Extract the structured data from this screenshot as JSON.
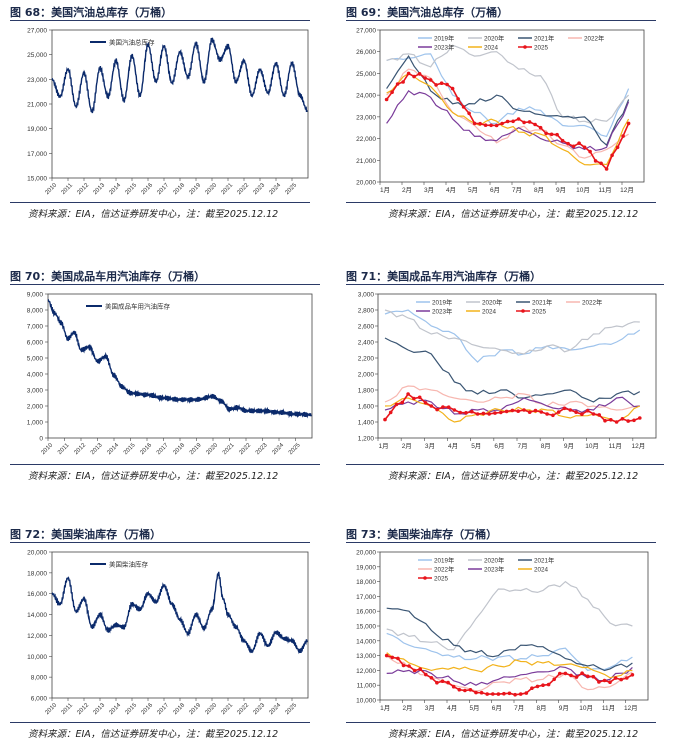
{
  "panels": [
    {
      "title": "图 68：美国汽油总库存（万桶）",
      "source": "资料来源：EIA，信达证券研发中心，注：截至2025.12.12"
    },
    {
      "title": "图 69：美国汽油总库存（万桶）",
      "source": "资料来源：EIA，信达证券研发中心，注：截至2025.12.12"
    },
    {
      "title": "图 70：美国成品车用汽油库存（万桶）",
      "source": "资料来源：EIA，信达证券研发中心，注：截至2025.12.12"
    },
    {
      "title": "图 71：美国成品车用汽油库存（万桶）",
      "source": "资料来源：EIA，信达证券研发中心，注：截至2025.12.12"
    },
    {
      "title": "图 72：美国柴油库存（万桶）",
      "source": "资料来源：EIA，信达证券研发中心，注：截至2025.12.12"
    },
    {
      "title": "图 73：美国柴油库存（万桶）",
      "source": "资料来源：EIA，信达证券研发中心，注：截至2025.12.12"
    }
  ],
  "colors": {
    "navy": "#0b2a6b",
    "y2019": "#9ec3ec",
    "y2020": "#c0c4cc",
    "y2021": "#3a5573",
    "y2022": "#f7b7b0",
    "y2023": "#7a3b9a",
    "y2024": "#f2b21b",
    "y2025": "#e8141b"
  },
  "chart_data": [
    {
      "type": "line",
      "series": [
        {
          "name": "美国汽油总库存",
          "x": [
            2010.0,
            2010.5,
            2011.0,
            2011.5,
            2012.0,
            2012.5,
            2013.0,
            2013.5,
            2014.0,
            2014.5,
            2015.0,
            2015.5,
            2016.0,
            2016.5,
            2017.0,
            2017.5,
            2018.0,
            2018.5,
            2019.0,
            2019.5,
            2020.0,
            2020.5,
            2021.0,
            2021.5,
            2022.0,
            2022.5,
            2023.0,
            2023.5,
            2024.0,
            2024.5,
            2025.0,
            2025.5,
            2025.95
          ],
          "values": [
            23000,
            21600,
            23800,
            20800,
            23500,
            20400,
            23900,
            21600,
            24500,
            21300,
            24900,
            21700,
            25800,
            22800,
            25700,
            22700,
            25200,
            23200,
            25900,
            22800,
            26200,
            24600,
            25700,
            22800,
            24500,
            21700,
            23800,
            21900,
            24300,
            21700,
            24300,
            21700,
            20500
          ]
        }
      ],
      "x_ticks": [
        "2010",
        "2011",
        "2012",
        "2013",
        "2014",
        "2015",
        "2016",
        "2017",
        "2018",
        "2019",
        "2020",
        "2021",
        "2022",
        "2023",
        "2024",
        "2025"
      ],
      "y_ticks": [
        "15,000",
        "17,000",
        "19,000",
        "21,000",
        "23,000",
        "25,000",
        "27,000"
      ],
      "ylim": [
        15000,
        27000
      ],
      "xlim": [
        2010,
        2026
      ]
    },
    {
      "type": "line",
      "categories": [
        "1月",
        "2月",
        "3月",
        "4月",
        "5月",
        "6月",
        "7月",
        "8月",
        "9月",
        "10月",
        "11月",
        "12月"
      ],
      "y_ticks": [
        "20,000",
        "21,000",
        "22,000",
        "23,000",
        "24,000",
        "25,000",
        "26,000",
        "27,000"
      ],
      "ylim": [
        20000,
        27000
      ],
      "series": [
        {
          "name": "2019年",
          "color_key": "y2019",
          "values": [
            25600,
            25700,
            25900,
            24000,
            23200,
            22700,
            23400,
            23300,
            22600,
            22600,
            22100,
            24300
          ]
        },
        {
          "name": "2020年",
          "color_key": "y2020",
          "values": [
            25600,
            25900,
            25300,
            26300,
            25800,
            26000,
            25200,
            24900,
            23000,
            22800,
            22800,
            24000
          ]
        },
        {
          "name": "2021年",
          "color_key": "y2021",
          "values": [
            24300,
            25800,
            24200,
            23600,
            23600,
            24000,
            23300,
            23100,
            23000,
            23000,
            21700,
            23800
          ]
        },
        {
          "name": "2022年",
          "color_key": "y2022",
          "values": [
            24000,
            25200,
            24800,
            23200,
            22600,
            21800,
            22500,
            22400,
            21700,
            21100,
            21500,
            22200
          ]
        },
        {
          "name": "2023年",
          "color_key": "y2023",
          "values": [
            22700,
            24200,
            23900,
            22900,
            22100,
            21900,
            22500,
            22000,
            21800,
            21500,
            21600,
            23700
          ]
        },
        {
          "name": "2024",
          "color_key": "y2024",
          "values": [
            24100,
            25000,
            24400,
            23200,
            22700,
            22800,
            22300,
            22200,
            21500,
            20800,
            20800,
            22900
          ]
        },
        {
          "name": "2025",
          "color_key": "y2025",
          "values": [
            23800,
            25000,
            24700,
            24300,
            22700,
            22600,
            22900,
            22500,
            21900,
            21600,
            20600,
            22700
          ]
        }
      ]
    },
    {
      "type": "line",
      "series": [
        {
          "name": "美国成品车用汽油库存",
          "x": [
            2010.0,
            2010.4,
            2010.8,
            2011.2,
            2011.6,
            2012.0,
            2012.5,
            2013.0,
            2013.5,
            2014.0,
            2014.5,
            2015.0,
            2016.0,
            2017.0,
            2018.0,
            2019.0,
            2020.0,
            2020.5,
            2021.0,
            2021.5,
            2022.0,
            2023.0,
            2024.0,
            2025.0,
            2025.95
          ],
          "values": [
            8600,
            7800,
            7200,
            6200,
            6600,
            5500,
            5700,
            4800,
            5100,
            3900,
            3200,
            2800,
            2700,
            2500,
            2400,
            2400,
            2600,
            2300,
            1800,
            1900,
            1700,
            1700,
            1600,
            1500,
            1450
          ]
        }
      ],
      "x_ticks": [
        "2010",
        "2011",
        "2012",
        "2013",
        "2014",
        "2015",
        "2016",
        "2017",
        "2018",
        "2019",
        "2020",
        "2021",
        "2022",
        "2023",
        "2024",
        "2025"
      ],
      "y_ticks": [
        "0",
        "1,000",
        "2,000",
        "3,000",
        "4,000",
        "5,000",
        "6,000",
        "7,000",
        "8,000",
        "9,000"
      ],
      "ylim": [
        0,
        9000
      ],
      "xlim": [
        2010,
        2026
      ]
    },
    {
      "type": "line",
      "categories": [
        "1月",
        "2月",
        "3月",
        "4月",
        "5月",
        "6月",
        "7月",
        "8月",
        "9月",
        "10月",
        "11月",
        "12月"
      ],
      "y_ticks": [
        "1,200",
        "1,400",
        "1,600",
        "1,800",
        "2,000",
        "2,200",
        "2,400",
        "2,600",
        "2,800",
        "3,000"
      ],
      "ylim": [
        1200,
        3000
      ],
      "series": [
        {
          "name": "2019年",
          "color_key": "y2019",
          "values": [
            2750,
            2800,
            2600,
            2500,
            2150,
            2300,
            2250,
            2350,
            2300,
            2350,
            2400,
            2550
          ]
        },
        {
          "name": "2020年",
          "color_key": "y2020",
          "values": [
            2800,
            2700,
            2500,
            2450,
            2350,
            2300,
            2250,
            2350,
            2300,
            2500,
            2600,
            2650
          ]
        },
        {
          "name": "2021年",
          "color_key": "y2021",
          "values": [
            2450,
            2300,
            2250,
            1900,
            1750,
            1800,
            1700,
            1750,
            1800,
            1650,
            1750,
            1780
          ]
        },
        {
          "name": "2022年",
          "color_key": "y2022",
          "values": [
            1650,
            1850,
            1800,
            1700,
            1650,
            1700,
            1750,
            1600,
            1650,
            1600,
            1550,
            1600
          ]
        },
        {
          "name": "2023年",
          "color_key": "y2023",
          "values": [
            1550,
            1650,
            1650,
            1500,
            1550,
            1550,
            1700,
            1600,
            1550,
            1550,
            1700,
            1600
          ]
        },
        {
          "name": "2024",
          "color_key": "y2024",
          "values": [
            1600,
            1700,
            1600,
            1400,
            1500,
            1550,
            1550,
            1550,
            1450,
            1500,
            1400,
            1600
          ]
        },
        {
          "name": "2025",
          "color_key": "y2025",
          "values": [
            1430,
            1750,
            1600,
            1550,
            1500,
            1520,
            1550,
            1500,
            1550,
            1500,
            1400,
            1450
          ]
        }
      ]
    },
    {
      "type": "line",
      "series": [
        {
          "name": "美国柴油库存",
          "x": [
            2010.0,
            2010.5,
            2011.0,
            2011.5,
            2012.0,
            2012.5,
            2013.0,
            2013.5,
            2014.0,
            2014.5,
            2015.0,
            2015.5,
            2016.0,
            2016.5,
            2017.0,
            2017.5,
            2018.0,
            2018.5,
            2019.0,
            2019.5,
            2020.0,
            2020.4,
            2020.7,
            2021.0,
            2021.5,
            2022.0,
            2022.5,
            2023.0,
            2023.5,
            2024.0,
            2024.5,
            2025.0,
            2025.5,
            2025.95
          ],
          "values": [
            16000,
            15000,
            17500,
            14300,
            15500,
            12800,
            14000,
            12500,
            13000,
            12800,
            15000,
            14500,
            16000,
            15200,
            16800,
            15000,
            13500,
            12200,
            14000,
            12700,
            14500,
            17900,
            15500,
            14000,
            12800,
            11500,
            10500,
            12200,
            11000,
            12300,
            11700,
            11500,
            10500,
            11500
          ]
        }
      ],
      "x_ticks": [
        "2010",
        "2011",
        "2012",
        "2013",
        "2014",
        "2015",
        "2016",
        "2017",
        "2018",
        "2019",
        "2020",
        "2021",
        "2022",
        "2023",
        "2024",
        "2025"
      ],
      "y_ticks": [
        "6,000",
        "8,000",
        "10,000",
        "12,000",
        "14,000",
        "16,000",
        "18,000",
        "20,000"
      ],
      "ylim": [
        6000,
        20000
      ],
      "xlim": [
        2010,
        2026
      ]
    },
    {
      "type": "line",
      "categories": [
        "1月",
        "2月",
        "3月",
        "4月",
        "5月",
        "6月",
        "7月",
        "8月",
        "9月",
        "10月",
        "11月",
        "12月"
      ],
      "y_ticks": [
        "10,000",
        "11,000",
        "12,000",
        "13,000",
        "14,000",
        "15,000",
        "16,000",
        "17,000",
        "18,000",
        "19,000",
        "20,000"
      ],
      "ylim": [
        10000,
        20000
      ],
      "series": [
        {
          "name": "2019年",
          "color_key": "y2019",
          "values": [
            14500,
            13700,
            13300,
            12900,
            12800,
            12900,
            12800,
            13000,
            13500,
            12000,
            12200,
            12900
          ]
        },
        {
          "name": "2020年",
          "color_key": "y2020",
          "values": [
            14800,
            14300,
            13900,
            13400,
            15500,
            17500,
            17400,
            17400,
            18000,
            16800,
            15200,
            15000
          ]
        },
        {
          "name": "2021年",
          "color_key": "y2021",
          "values": [
            16200,
            16000,
            14700,
            13700,
            13200,
            13000,
            13700,
            13600,
            12800,
            12300,
            12100,
            12500
          ]
        },
        {
          "name": "2022年",
          "color_key": "y2022",
          "values": [
            13000,
            12200,
            11500,
            11000,
            10600,
            11200,
            11400,
            11400,
            11800,
            10700,
            10900,
            11900
          ]
        },
        {
          "name": "2023年",
          "color_key": "y2023",
          "values": [
            11800,
            12000,
            11800,
            11300,
            11000,
            11400,
            11700,
            11900,
            12200,
            11500,
            11400,
            12200
          ]
        },
        {
          "name": "2024",
          "color_key": "y2024",
          "values": [
            13200,
            12500,
            12000,
            12200,
            12000,
            12300,
            12600,
            12500,
            12400,
            12200,
            11500,
            12000
          ]
        },
        {
          "name": "2025",
          "color_key": "y2025",
          "values": [
            13000,
            12300,
            11500,
            10900,
            10500,
            10400,
            10400,
            11000,
            11800,
            11600,
            11200,
            11700
          ]
        }
      ]
    }
  ]
}
